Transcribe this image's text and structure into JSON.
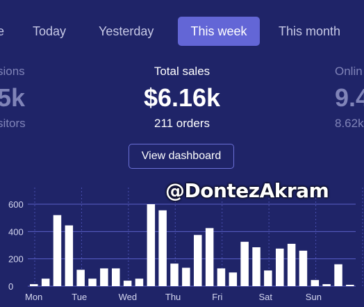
{
  "tabs": [
    {
      "label": "e"
    },
    {
      "label": "Today"
    },
    {
      "label": "Yesterday"
    },
    {
      "label": "This week",
      "active": true
    },
    {
      "label": "This month"
    }
  ],
  "stats": {
    "left": {
      "label": "sions",
      "value": "5k",
      "sub": "sitors"
    },
    "center": {
      "label": "Total sales",
      "value": "$6.16k",
      "sub": "211 orders"
    },
    "right": {
      "label": "Onlin",
      "value": "9.4",
      "sub": "8.62k"
    }
  },
  "dashboard_button": "View dashboard",
  "watermark": "@DontezAkram",
  "chart_data": {
    "type": "bar",
    "ylim": [
      0,
      600
    ],
    "y_ticks": [
      "0",
      "200",
      "400",
      "600"
    ],
    "day_labels": [
      "Mon",
      "Tue",
      "Wed",
      "Thu",
      "Fri",
      "Sat",
      "Sun"
    ],
    "values": [
      15,
      55,
      520,
      445,
      120,
      55,
      130,
      130,
      40,
      55,
      600,
      555,
      165,
      135,
      375,
      425,
      130,
      100,
      325,
      285,
      115,
      275,
      310,
      260,
      45,
      15,
      160,
      10
    ],
    "bar_color": "#ffffff",
    "grid": true
  }
}
